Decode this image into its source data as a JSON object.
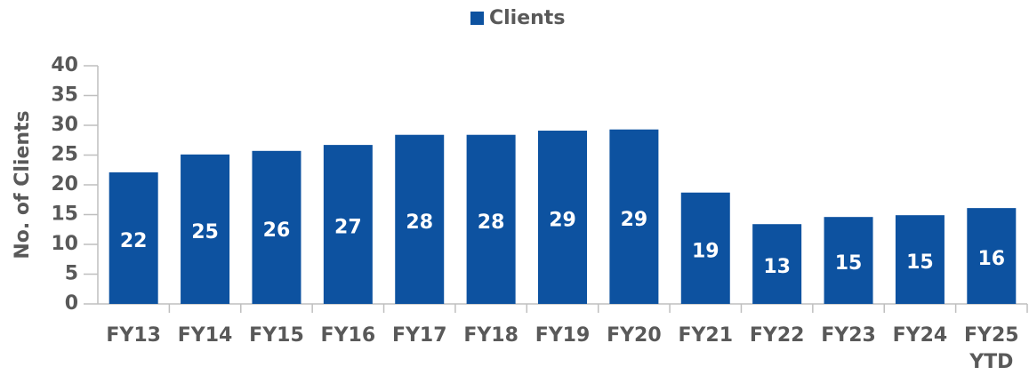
{
  "chart_data": {
    "type": "bar",
    "y_label": "No. of Clients",
    "categories": [
      "FY13",
      "FY14",
      "FY15",
      "FY16",
      "FY17",
      "FY18",
      "FY19",
      "FY20",
      "FY21",
      "FY22",
      "FY23",
      "FY24",
      "FY25 YTD"
    ],
    "series": [
      {
        "name": "Clients",
        "color": "#0d52a0",
        "values": [
          22.1,
          25.1,
          25.7,
          26.7,
          28.4,
          28.4,
          29.1,
          29.3,
          18.7,
          13.4,
          14.6,
          14.9,
          16.1
        ],
        "value_labels": [
          "22",
          "25",
          "26",
          "27",
          "28",
          "28",
          "29",
          "29",
          "19",
          "13",
          "15",
          "15",
          "16"
        ]
      }
    ],
    "ylim": [
      0,
      40
    ],
    "yticks": [
      0,
      5,
      10,
      15,
      20,
      25,
      30,
      35,
      40
    ],
    "legend": "top"
  }
}
